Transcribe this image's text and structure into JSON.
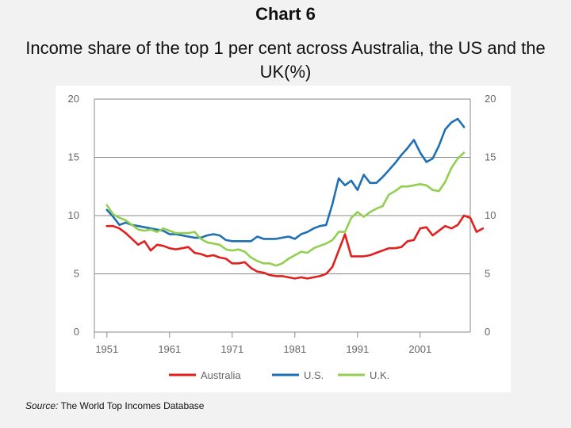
{
  "header": {
    "title": "Chart 6",
    "subtitle": "Income share of the top 1 per cent across Australia, the US and the UK(%)"
  },
  "source": {
    "label": "Source:",
    "text": " The World Top Incomes Database"
  },
  "chart_data": {
    "type": "line",
    "title": "",
    "xlabel": "",
    "ylabel": "",
    "xlim": [
      1949,
      2009
    ],
    "ylim": [
      0,
      20
    ],
    "x_ticks": [
      1951,
      1961,
      1971,
      1981,
      1991,
      2001
    ],
    "x_tick_labels": [
      "1951",
      "1961",
      "1971",
      "1981",
      "1991",
      "2001"
    ],
    "y_ticks": [
      0,
      5,
      10,
      15,
      20
    ],
    "y_tick_labels": [
      "0",
      "5",
      "10",
      "15",
      "20"
    ],
    "grid": "horizontal",
    "legend": "bottom",
    "series": [
      {
        "name": "Australia",
        "color": "#e0201c",
        "points": [
          [
            1951,
            9.1
          ],
          [
            1952,
            9.1
          ],
          [
            1953,
            8.9
          ],
          [
            1954,
            8.5
          ],
          [
            1955,
            8.0
          ],
          [
            1956,
            7.5
          ],
          [
            1957,
            7.8
          ],
          [
            1958,
            7.0
          ],
          [
            1959,
            7.5
          ],
          [
            1960,
            7.4
          ],
          [
            1961,
            7.2
          ],
          [
            1962,
            7.1
          ],
          [
            1963,
            7.2
          ],
          [
            1964,
            7.3
          ],
          [
            1965,
            6.8
          ],
          [
            1966,
            6.7
          ],
          [
            1967,
            6.5
          ],
          [
            1968,
            6.6
          ],
          [
            1969,
            6.4
          ],
          [
            1970,
            6.3
          ],
          [
            1971,
            5.9
          ],
          [
            1972,
            5.9
          ],
          [
            1973,
            6.0
          ],
          [
            1974,
            5.5
          ],
          [
            1975,
            5.2
          ],
          [
            1976,
            5.1
          ],
          [
            1977,
            4.9
          ],
          [
            1978,
            4.8
          ],
          [
            1979,
            4.8
          ],
          [
            1980,
            4.7
          ],
          [
            1981,
            4.6
          ],
          [
            1982,
            4.7
          ],
          [
            1983,
            4.6
          ],
          [
            1984,
            4.7
          ],
          [
            1985,
            4.8
          ],
          [
            1986,
            5.0
          ],
          [
            1987,
            5.6
          ],
          [
            1988,
            7.0
          ],
          [
            1989,
            8.4
          ],
          [
            1990,
            6.5
          ],
          [
            1991,
            6.5
          ],
          [
            1992,
            6.5
          ],
          [
            1993,
            6.6
          ],
          [
            1994,
            6.8
          ],
          [
            1995,
            7.0
          ],
          [
            1996,
            7.2
          ],
          [
            1997,
            7.2
          ],
          [
            1998,
            7.3
          ],
          [
            1999,
            7.8
          ],
          [
            2000,
            7.9
          ],
          [
            2001,
            8.9
          ],
          [
            2002,
            9.0
          ],
          [
            2003,
            8.3
          ],
          [
            2004,
            8.7
          ],
          [
            2005,
            9.1
          ],
          [
            2006,
            8.9
          ],
          [
            2007,
            9.2
          ],
          [
            2008,
            10.0
          ],
          [
            2009,
            9.8
          ],
          [
            2010,
            8.6
          ],
          [
            2011,
            8.9
          ]
        ]
      },
      {
        "name": "U.S.",
        "color": "#1f6fb4",
        "points": [
          [
            1951,
            10.5
          ],
          [
            1952,
            9.9
          ],
          [
            1953,
            9.2
          ],
          [
            1954,
            9.4
          ],
          [
            1955,
            9.2
          ],
          [
            1956,
            9.1
          ],
          [
            1957,
            9.0
          ],
          [
            1958,
            8.9
          ],
          [
            1959,
            8.8
          ],
          [
            1960,
            8.7
          ],
          [
            1961,
            8.4
          ],
          [
            1962,
            8.4
          ],
          [
            1963,
            8.3
          ],
          [
            1964,
            8.2
          ],
          [
            1965,
            8.1
          ],
          [
            1966,
            8.1
          ],
          [
            1967,
            8.3
          ],
          [
            1968,
            8.4
          ],
          [
            1969,
            8.3
          ],
          [
            1970,
            7.9
          ],
          [
            1971,
            7.8
          ],
          [
            1972,
            7.8
          ],
          [
            1973,
            7.8
          ],
          [
            1974,
            7.8
          ],
          [
            1975,
            8.2
          ],
          [
            1976,
            8.0
          ],
          [
            1977,
            8.0
          ],
          [
            1978,
            8.0
          ],
          [
            1979,
            8.1
          ],
          [
            1980,
            8.2
          ],
          [
            1981,
            8.0
          ],
          [
            1982,
            8.4
          ],
          [
            1983,
            8.6
          ],
          [
            1984,
            8.9
          ],
          [
            1985,
            9.1
          ],
          [
            1986,
            9.2
          ],
          [
            1987,
            11.0
          ],
          [
            1988,
            13.2
          ],
          [
            1989,
            12.6
          ],
          [
            1990,
            13.0
          ],
          [
            1991,
            12.2
          ],
          [
            1992,
            13.5
          ],
          [
            1993,
            12.8
          ],
          [
            1994,
            12.8
          ],
          [
            1995,
            13.3
          ],
          [
            1996,
            13.9
          ],
          [
            1997,
            14.5
          ],
          [
            1998,
            15.2
          ],
          [
            1999,
            15.8
          ],
          [
            2000,
            16.5
          ],
          [
            2001,
            15.4
          ],
          [
            2002,
            14.6
          ],
          [
            2003,
            14.9
          ],
          [
            2004,
            16.0
          ],
          [
            2005,
            17.4
          ],
          [
            2006,
            18.0
          ],
          [
            2007,
            18.3
          ],
          [
            2008,
            17.6
          ]
        ]
      },
      {
        "name": "U.K.",
        "color": "#92cf50",
        "points": [
          [
            1951,
            10.9
          ],
          [
            1952,
            10.1
          ],
          [
            1953,
            9.8
          ],
          [
            1954,
            9.6
          ],
          [
            1955,
            9.2
          ],
          [
            1956,
            8.8
          ],
          [
            1957,
            8.7
          ],
          [
            1958,
            8.8
          ],
          [
            1959,
            8.6
          ],
          [
            1960,
            8.9
          ],
          [
            1961,
            8.7
          ],
          [
            1962,
            8.5
          ],
          [
            1963,
            8.5
          ],
          [
            1964,
            8.5
          ],
          [
            1965,
            8.6
          ],
          [
            1966,
            8.0
          ],
          [
            1967,
            7.7
          ],
          [
            1968,
            7.6
          ],
          [
            1969,
            7.5
          ],
          [
            1970,
            7.1
          ],
          [
            1971,
            7.0
          ],
          [
            1972,
            7.1
          ],
          [
            1973,
            6.9
          ],
          [
            1974,
            6.4
          ],
          [
            1975,
            6.1
          ],
          [
            1976,
            5.9
          ],
          [
            1977,
            5.9
          ],
          [
            1978,
            5.7
          ],
          [
            1979,
            5.9
          ],
          [
            1980,
            6.3
          ],
          [
            1981,
            6.6
          ],
          [
            1982,
            6.9
          ],
          [
            1983,
            6.8
          ],
          [
            1984,
            7.2
          ],
          [
            1985,
            7.4
          ],
          [
            1986,
            7.6
          ],
          [
            1987,
            7.9
          ],
          [
            1988,
            8.6
          ],
          [
            1989,
            8.6
          ],
          [
            1990,
            9.8
          ],
          [
            1991,
            10.3
          ],
          [
            1992,
            9.9
          ],
          [
            1993,
            10.3
          ],
          [
            1994,
            10.6
          ],
          [
            1995,
            10.8
          ],
          [
            1996,
            11.8
          ],
          [
            1997,
            12.1
          ],
          [
            1998,
            12.5
          ],
          [
            1999,
            12.5
          ],
          [
            2000,
            12.6
          ],
          [
            2001,
            12.7
          ],
          [
            2002,
            12.6
          ],
          [
            2003,
            12.2
          ],
          [
            2004,
            12.1
          ],
          [
            2005,
            12.9
          ],
          [
            2006,
            14.1
          ],
          [
            2007,
            14.9
          ],
          [
            2008,
            15.4
          ]
        ]
      }
    ]
  }
}
